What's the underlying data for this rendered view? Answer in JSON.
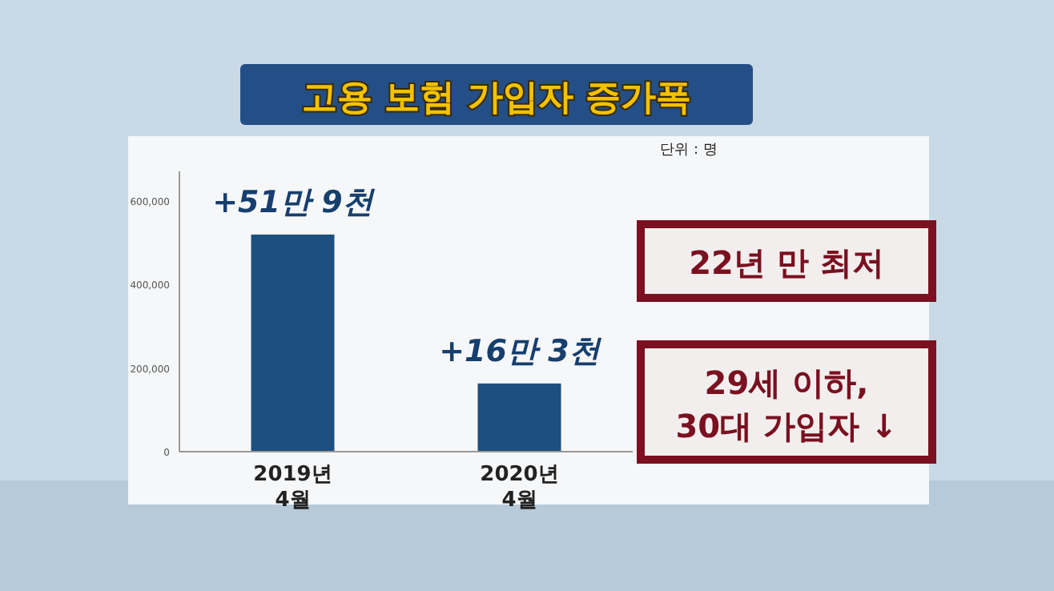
{
  "chart_data": {
    "type": "bar",
    "title": "고용 보험 가입자 증가폭",
    "subtitle": "단위 : 명",
    "categories": [
      "2019년\n4월",
      "2020년\n4월"
    ],
    "values": [
      519000,
      163000
    ],
    "color": "#1d4f7f",
    "ylim": [
      0,
      670000
    ],
    "yticks": [
      0,
      {
        "value": 200000,
        "label": "200,000"
      },
      {
        "value": 400000,
        "label": "400,000"
      },
      {
        "value": 600000,
        "label": "600,000"
      }
    ],
    "annotations": [
      {
        "text": "+51만 9천",
        "x": "2019년\n4월",
        "y": 519000
      },
      {
        "text": "+16만 3천",
        "x": "2020년\n4월",
        "y": 163000
      },
      "22년 만 최저",
      "29세 이하,\n30대 가입자 ↓"
    ]
  }
}
